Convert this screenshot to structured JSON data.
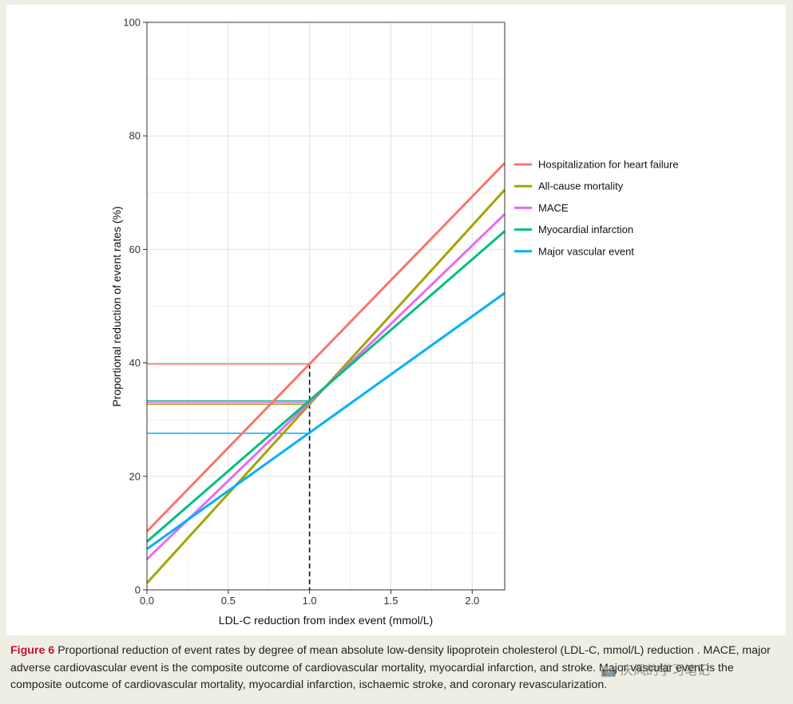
{
  "chart_data": {
    "type": "line",
    "xlabel": "LDL-C reduction from index event (mmol/L)",
    "ylabel": "Proportional reduction of event rates (%)",
    "xlim": [
      0,
      2.2
    ],
    "ylim": [
      0,
      100
    ],
    "x_ticks": [
      "0.0",
      "0.5",
      "1.0",
      "1.5",
      "2.0"
    ],
    "x_tick_values": [
      0,
      0.5,
      1.0,
      1.5,
      2.0
    ],
    "y_ticks": [
      "0",
      "20",
      "40",
      "60",
      "80",
      "100"
    ],
    "y_tick_values": [
      0,
      20,
      40,
      60,
      80,
      100
    ],
    "grid": true,
    "legend_position": "right",
    "reference_x": 1.0,
    "series": [
      {
        "name": "Hospitalization for heart failure",
        "color": "#f8766d",
        "x": [
          0,
          2.2
        ],
        "y": [
          10.3,
          75.2
        ],
        "value_at_ref": 39.8
      },
      {
        "name": "All-cause mortality",
        "color": "#a3a500",
        "x": [
          0,
          2.2
        ],
        "y": [
          1.2,
          70.5
        ],
        "value_at_ref": 32.7
      },
      {
        "name": "MACE",
        "color": "#e76bf3",
        "x": [
          0,
          2.2
        ],
        "y": [
          5.4,
          66.2
        ],
        "value_at_ref": 33.0
      },
      {
        "name": "Myocardial infarction",
        "color": "#00bf7d",
        "x": [
          0,
          2.2
        ],
        "y": [
          8.5,
          63.2
        ],
        "value_at_ref": 33.3
      },
      {
        "name": "Major vascular event",
        "color": "#00b0f6",
        "x": [
          0,
          2.2
        ],
        "y": [
          7.2,
          52.3
        ],
        "value_at_ref": 27.6
      }
    ]
  },
  "caption": {
    "label": "Figure 6",
    "text": "Proportional reduction of event rates by degree of mean absolute low-density lipoprotein cholesterol (LDL-C, mmol/L) reduction . MACE, major adverse cardiovascular event is the composite outcome of cardiovascular mortality, myocardial infarction, and stroke. Major vascular event is the composite outcome of cardiovascular mortality, myocardial infarction, ischaemic stroke, and coronary revascularization."
  },
  "watermark": "📷 庆风的学习笔记"
}
